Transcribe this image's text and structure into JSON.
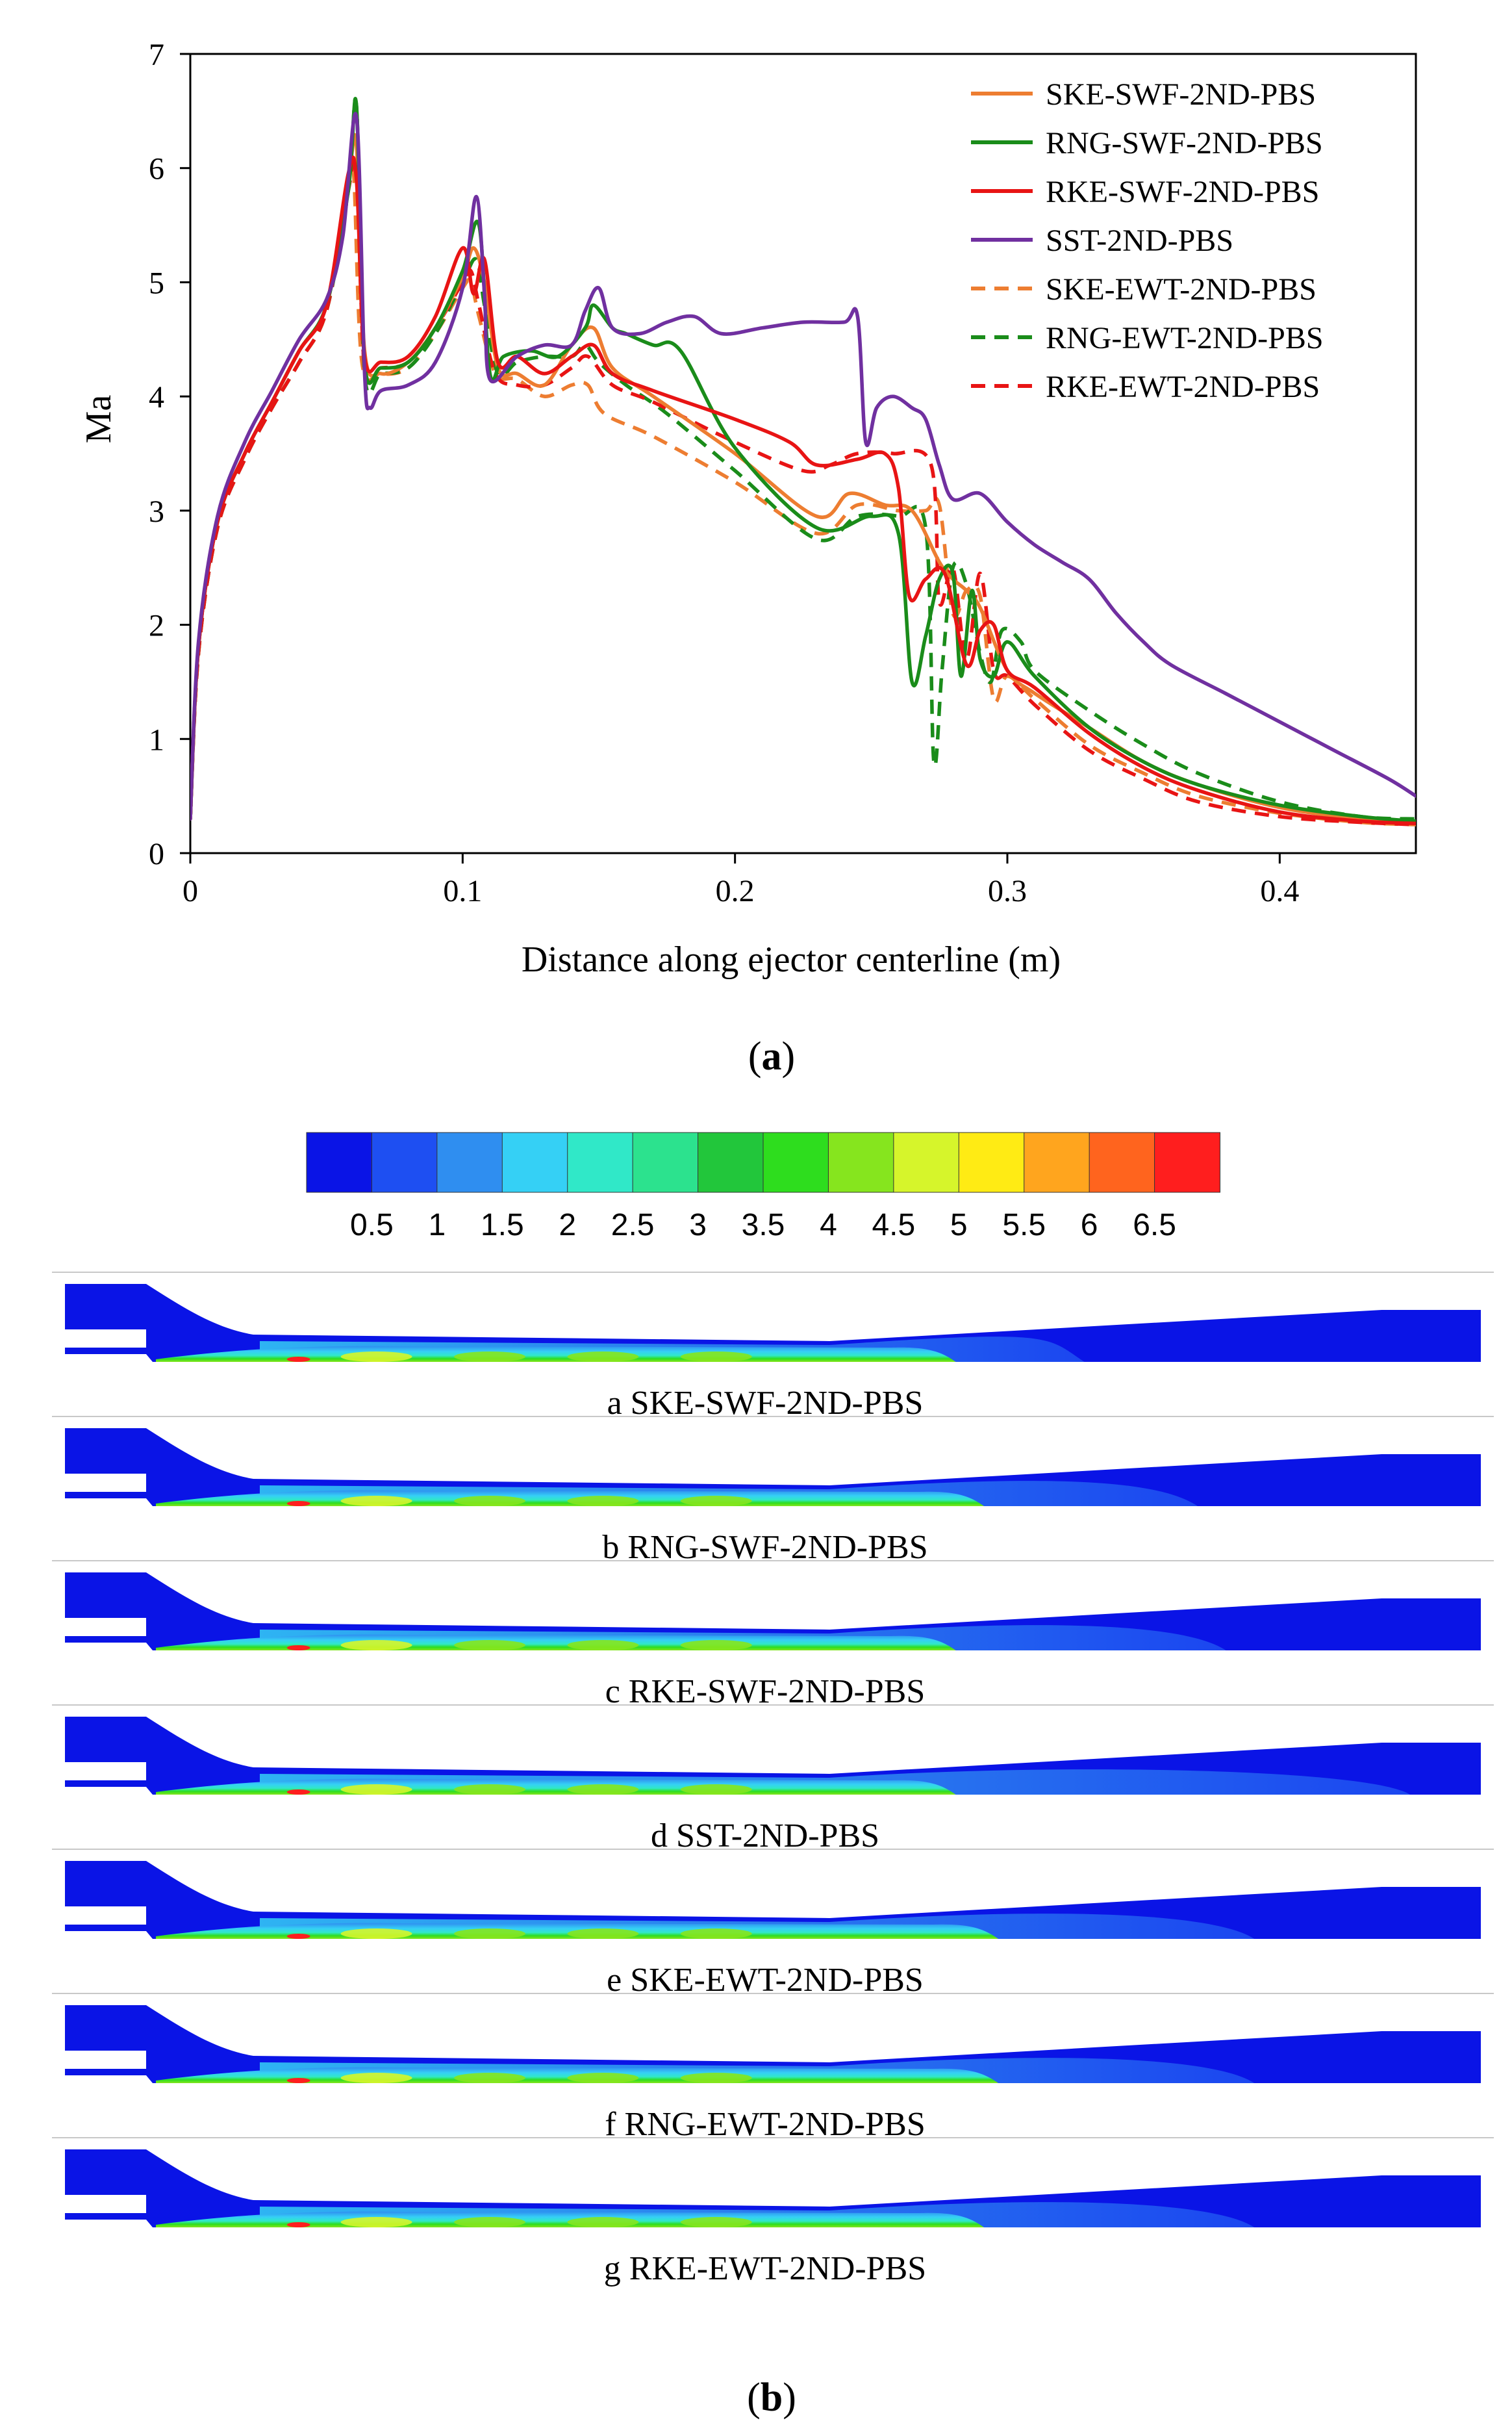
{
  "chart_data": {
    "type": "line",
    "title": "",
    "xlabel": "Distance along ejector centerline (m)",
    "ylabel": "Ma",
    "xlim": [
      0,
      0.45
    ],
    "ylim": [
      0,
      7
    ],
    "x_ticks": [
      "0",
      "0.1",
      "0.2",
      "0.3",
      "0.4"
    ],
    "x_tick_values": [
      0,
      0.1,
      0.2,
      0.3,
      0.4
    ],
    "y_ticks": [
      "0",
      "1",
      "2",
      "3",
      "4",
      "5",
      "6",
      "7"
    ],
    "y_tick_values": [
      0,
      1,
      2,
      3,
      4,
      5,
      6,
      7
    ],
    "legend_position": "top-right",
    "series": [
      {
        "name": "SKE-SWF-2ND-PBS",
        "color": "#ED7D31",
        "dash": false,
        "x": [
          0,
          0.003,
          0.01,
          0.02,
          0.03,
          0.04,
          0.05,
          0.058,
          0.061,
          0.064,
          0.07,
          0.08,
          0.09,
          0.1,
          0.104,
          0.108,
          0.113,
          0.12,
          0.13,
          0.14,
          0.148,
          0.155,
          0.17,
          0.2,
          0.23,
          0.242,
          0.255,
          0.265,
          0.275,
          0.28,
          0.285,
          0.29,
          0.3,
          0.31,
          0.33,
          0.35,
          0.37,
          0.4,
          0.43,
          0.45
        ],
        "y": [
          0.3,
          1.8,
          2.9,
          3.5,
          3.95,
          4.4,
          4.8,
          5.9,
          6.2,
          4.4,
          4.2,
          4.3,
          4.6,
          5.05,
          5.3,
          5.0,
          4.25,
          4.2,
          4.1,
          4.45,
          4.6,
          4.25,
          4.0,
          3.5,
          2.95,
          3.15,
          3.05,
          3.0,
          2.55,
          2.4,
          2.3,
          2.15,
          1.6,
          1.4,
          1.1,
          0.8,
          0.6,
          0.4,
          0.3,
          0.28
        ]
      },
      {
        "name": "RNG-SWF-2ND-PBS",
        "color": "#1A8C1A",
        "dash": false,
        "x": [
          0,
          0.003,
          0.01,
          0.02,
          0.03,
          0.04,
          0.05,
          0.058,
          0.061,
          0.064,
          0.07,
          0.08,
          0.09,
          0.1,
          0.106,
          0.11,
          0.115,
          0.125,
          0.135,
          0.145,
          0.148,
          0.155,
          0.16,
          0.17,
          0.18,
          0.2,
          0.23,
          0.25,
          0.26,
          0.265,
          0.27,
          0.275,
          0.28,
          0.283,
          0.287,
          0.29,
          0.295,
          0.3,
          0.31,
          0.33,
          0.35,
          0.37,
          0.4,
          0.43,
          0.45
        ],
        "y": [
          0.3,
          1.8,
          2.9,
          3.5,
          3.95,
          4.4,
          4.8,
          5.8,
          6.55,
          4.3,
          4.25,
          4.3,
          4.6,
          5.1,
          5.5,
          4.2,
          4.35,
          4.4,
          4.35,
          4.6,
          4.8,
          4.6,
          4.55,
          4.45,
          4.4,
          3.55,
          2.85,
          2.95,
          2.8,
          1.5,
          1.9,
          2.4,
          2.45,
          1.55,
          2.3,
          1.7,
          1.55,
          1.85,
          1.55,
          1.1,
          0.8,
          0.6,
          0.42,
          0.32,
          0.28
        ]
      },
      {
        "name": "RKE-SWF-2ND-PBS",
        "color": "#E81414",
        "dash": false,
        "x": [
          0,
          0.003,
          0.01,
          0.02,
          0.03,
          0.04,
          0.05,
          0.058,
          0.061,
          0.064,
          0.07,
          0.08,
          0.09,
          0.1,
          0.104,
          0.108,
          0.113,
          0.12,
          0.13,
          0.14,
          0.148,
          0.155,
          0.17,
          0.2,
          0.22,
          0.23,
          0.245,
          0.255,
          0.26,
          0.264,
          0.27,
          0.277,
          0.285,
          0.29,
          0.295,
          0.3,
          0.31,
          0.33,
          0.35,
          0.37,
          0.4,
          0.43,
          0.45
        ],
        "y": [
          0.3,
          1.8,
          2.9,
          3.5,
          3.95,
          4.4,
          4.8,
          5.95,
          5.9,
          4.35,
          4.3,
          4.35,
          4.7,
          5.3,
          4.9,
          5.2,
          4.3,
          4.35,
          4.2,
          4.35,
          4.45,
          4.2,
          4.05,
          3.8,
          3.6,
          3.4,
          3.45,
          3.5,
          3.2,
          2.25,
          2.4,
          2.45,
          1.65,
          1.95,
          2.0,
          1.6,
          1.45,
          1.05,
          0.75,
          0.55,
          0.36,
          0.28,
          0.26
        ]
      },
      {
        "name": "SST-2ND-PBS",
        "color": "#7030A0",
        "dash": false,
        "x": [
          0,
          0.003,
          0.01,
          0.02,
          0.03,
          0.04,
          0.05,
          0.056,
          0.061,
          0.064,
          0.066,
          0.07,
          0.08,
          0.09,
          0.1,
          0.105,
          0.108,
          0.11,
          0.12,
          0.13,
          0.14,
          0.145,
          0.15,
          0.155,
          0.165,
          0.175,
          0.185,
          0.195,
          0.21,
          0.225,
          0.24,
          0.245,
          0.248,
          0.252,
          0.258,
          0.265,
          0.27,
          0.275,
          0.28,
          0.29,
          0.3,
          0.31,
          0.32,
          0.33,
          0.34,
          0.35,
          0.36,
          0.38,
          0.4,
          0.42,
          0.44,
          0.45
        ],
        "y": [
          0.3,
          1.85,
          2.95,
          3.6,
          4.05,
          4.5,
          4.85,
          5.4,
          6.45,
          4.2,
          3.9,
          4.05,
          4.1,
          4.3,
          4.95,
          5.75,
          4.9,
          4.15,
          4.35,
          4.45,
          4.45,
          4.75,
          4.95,
          4.6,
          4.55,
          4.65,
          4.7,
          4.55,
          4.6,
          4.65,
          4.65,
          4.7,
          3.6,
          3.9,
          4.0,
          3.9,
          3.8,
          3.4,
          3.1,
          3.15,
          2.9,
          2.7,
          2.55,
          2.4,
          2.1,
          1.85,
          1.65,
          1.4,
          1.15,
          0.9,
          0.65,
          0.5
        ]
      },
      {
        "name": "SKE-EWT-2ND-PBS",
        "color": "#ED7D31",
        "dash": true,
        "x": [
          0,
          0.003,
          0.01,
          0.02,
          0.03,
          0.04,
          0.05,
          0.058,
          0.06,
          0.063,
          0.07,
          0.08,
          0.09,
          0.1,
          0.103,
          0.106,
          0.112,
          0.12,
          0.13,
          0.14,
          0.146,
          0.152,
          0.17,
          0.2,
          0.23,
          0.245,
          0.26,
          0.27,
          0.275,
          0.28,
          0.285,
          0.29,
          0.295,
          0.3,
          0.31,
          0.33,
          0.35,
          0.37,
          0.4,
          0.43,
          0.45
        ],
        "y": [
          0.3,
          1.75,
          2.85,
          3.45,
          3.9,
          4.3,
          4.75,
          5.85,
          5.95,
          4.3,
          4.2,
          4.25,
          4.55,
          4.95,
          5.0,
          4.7,
          4.2,
          4.15,
          4.0,
          4.1,
          4.1,
          3.85,
          3.65,
          3.25,
          2.8,
          3.05,
          3.0,
          3.0,
          3.05,
          2.1,
          2.3,
          2.25,
          1.35,
          1.55,
          1.35,
          0.95,
          0.7,
          0.5,
          0.35,
          0.27,
          0.25
        ]
      },
      {
        "name": "RNG-EWT-2ND-PBS",
        "color": "#1A8C1A",
        "dash": true,
        "x": [
          0,
          0.003,
          0.01,
          0.02,
          0.03,
          0.04,
          0.05,
          0.058,
          0.061,
          0.064,
          0.07,
          0.08,
          0.09,
          0.1,
          0.105,
          0.108,
          0.113,
          0.12,
          0.13,
          0.14,
          0.145,
          0.15,
          0.16,
          0.175,
          0.2,
          0.23,
          0.245,
          0.26,
          0.27,
          0.273,
          0.276,
          0.28,
          0.285,
          0.29,
          0.294,
          0.298,
          0.305,
          0.31,
          0.33,
          0.35,
          0.37,
          0.4,
          0.43,
          0.45
        ],
        "y": [
          0.3,
          1.75,
          2.85,
          3.45,
          3.9,
          4.3,
          4.75,
          5.8,
          6.55,
          4.2,
          4.2,
          4.25,
          4.55,
          5.0,
          5.2,
          4.8,
          4.2,
          4.3,
          4.35,
          4.35,
          4.45,
          4.3,
          4.1,
          3.85,
          3.35,
          2.75,
          2.95,
          2.95,
          2.85,
          0.8,
          1.6,
          2.5,
          2.35,
          1.75,
          1.5,
          1.95,
          1.85,
          1.6,
          1.25,
          0.95,
          0.7,
          0.45,
          0.32,
          0.3
        ]
      },
      {
        "name": "RKE-EWT-2ND-PBS",
        "color": "#E81414",
        "dash": true,
        "x": [
          0,
          0.003,
          0.01,
          0.02,
          0.03,
          0.04,
          0.05,
          0.058,
          0.061,
          0.064,
          0.07,
          0.08,
          0.09,
          0.1,
          0.103,
          0.106,
          0.112,
          0.12,
          0.13,
          0.14,
          0.146,
          0.155,
          0.17,
          0.2,
          0.225,
          0.235,
          0.245,
          0.258,
          0.272,
          0.275,
          0.28,
          0.285,
          0.29,
          0.295,
          0.3,
          0.31,
          0.33,
          0.35,
          0.37,
          0.4,
          0.43,
          0.45
        ],
        "y": [
          0.3,
          1.75,
          2.85,
          3.45,
          3.9,
          4.3,
          4.75,
          5.8,
          6.0,
          4.25,
          4.25,
          4.3,
          4.6,
          5.0,
          5.1,
          4.8,
          4.2,
          4.1,
          4.1,
          4.25,
          4.35,
          4.1,
          3.95,
          3.6,
          3.35,
          3.4,
          3.5,
          3.5,
          3.4,
          2.2,
          2.5,
          1.7,
          2.45,
          1.6,
          1.55,
          1.3,
          0.9,
          0.65,
          0.45,
          0.32,
          0.27,
          0.25
        ]
      }
    ]
  },
  "panel_a_label_prefix": "(",
  "panel_a_label": "a",
  "panel_a_label_suffix": ")",
  "panel_b_label_prefix": "(",
  "panel_b_label": "b",
  "panel_b_label_suffix": ")",
  "colorbar": {
    "colors": [
      "#0A14E6",
      "#1E4FF2",
      "#2F8EF0",
      "#35D0F5",
      "#30E8C8",
      "#2CE28E",
      "#22C63B",
      "#2EDD1E",
      "#86E51E",
      "#D6F52B",
      "#FFEB14",
      "#FFA51E",
      "#FF641E",
      "#FF1E1E"
    ],
    "tick_labels": [
      "0.5",
      "1",
      "1.5",
      "2",
      "2.5",
      "3",
      "3.5",
      "4",
      "4.5",
      "5",
      "5.5",
      "6",
      "6.5"
    ]
  },
  "contours": [
    {
      "caption": "a SKE-SWF-2ND-PBS",
      "core_end": 0.62,
      "plume": 0.72
    },
    {
      "caption": "b RNG-SWF-2ND-PBS",
      "core_end": 0.64,
      "plume": 0.8
    },
    {
      "caption": "c RKE-SWF-2ND-PBS",
      "core_end": 0.62,
      "plume": 0.82
    },
    {
      "caption": "d SST-2ND-PBS",
      "core_end": 0.62,
      "plume": 0.95
    },
    {
      "caption": "e SKE-EWT-2ND-PBS",
      "core_end": 0.65,
      "plume": 0.84
    },
    {
      "caption": "f RNG-EWT-2ND-PBS",
      "core_end": 0.65,
      "plume": 0.84
    },
    {
      "caption": "g RKE-EWT-2ND-PBS",
      "core_end": 0.64,
      "plume": 0.84
    }
  ]
}
